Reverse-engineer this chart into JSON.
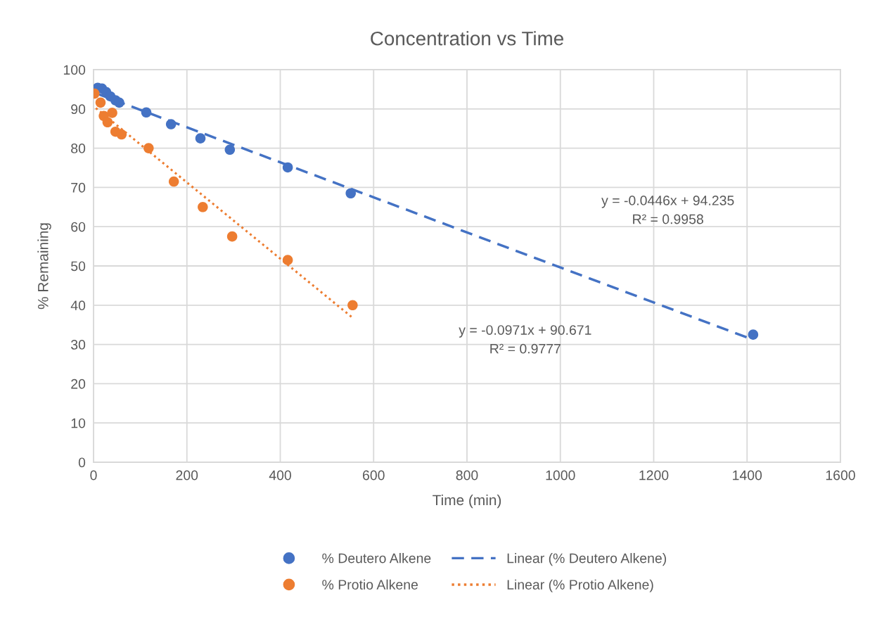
{
  "chart_data": {
    "type": "scatter",
    "title": "Concentration vs Time",
    "xlabel": "Time (min)",
    "ylabel": "% Remaining",
    "xlim": [
      0,
      1600
    ],
    "xticks": [
      0,
      200,
      400,
      600,
      800,
      1000,
      1200,
      1400,
      1600
    ],
    "ylim": [
      0,
      100
    ],
    "yticks": [
      0,
      10,
      20,
      30,
      40,
      50,
      60,
      70,
      80,
      90,
      100
    ],
    "grid": true,
    "legend": "bottom",
    "marker": "circle",
    "series": [
      {
        "name": "% Deutero Alkene",
        "color": "#4472c4",
        "x": [
          9,
          18,
          27,
          36,
          47,
          55,
          113,
          166,
          229,
          292,
          416,
          551,
          1413
        ],
        "values": [
          95.4,
          95.2,
          94.3,
          93.2,
          92.2,
          91.6,
          89.1,
          86.1,
          82.5,
          79.6,
          75.1,
          68.5,
          32.5
        ]
      },
      {
        "name": "% Protio Alkene",
        "color": "#ed7d31",
        "x": [
          2,
          15,
          22,
          30,
          40,
          47,
          60,
          118,
          172,
          234,
          297,
          416,
          555
        ],
        "values": [
          93.9,
          91.6,
          88.2,
          86.6,
          89,
          84.2,
          83.5,
          80,
          71.5,
          65,
          57.5,
          51.5,
          40
        ]
      },
      {
        "name": "Linear (% Deutero Alkene)",
        "type": "line",
        "marker": "none",
        "line_style": "dashed",
        "color": "#4472c4",
        "x": [
          3,
          1413
        ],
        "values": [
          94.1,
          31.2
        ]
      },
      {
        "name": "Linear (% Protio Alkene)",
        "type": "line",
        "marker": "none",
        "line_style": "dotted",
        "color": "#ed7d31",
        "x": [
          5,
          555
        ],
        "values": [
          90.2,
          36.8
        ]
      }
    ],
    "annotations": [
      "y = -0.0446x + 94.235\nR² = 0.9958",
      "y = -0.0971x + 90.671\nR² = 0.9777"
    ]
  }
}
